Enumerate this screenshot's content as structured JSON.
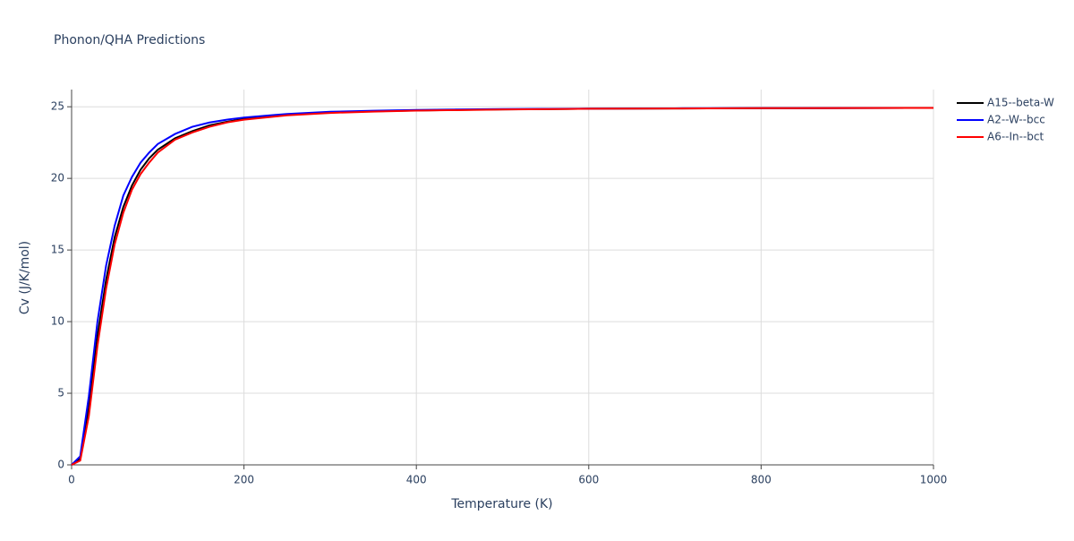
{
  "chart_data": {
    "type": "line",
    "title": "Phonon/QHA Predictions",
    "x_label": "Temperature (K)",
    "y_label": "Cv (J/K/mol)",
    "x": [
      0,
      10,
      20,
      30,
      40,
      50,
      60,
      70,
      80,
      90,
      100,
      120,
      140,
      160,
      180,
      200,
      250,
      300,
      350,
      400,
      500,
      600,
      700,
      800,
      900,
      1000
    ],
    "series": [
      {
        "name": "A15--beta-W",
        "color": "#000000",
        "values": [
          0,
          0.45,
          4.0,
          9.0,
          12.9,
          15.9,
          18.0,
          19.5,
          20.6,
          21.4,
          22.0,
          22.8,
          23.3,
          23.7,
          23.95,
          24.15,
          24.45,
          24.6,
          24.68,
          24.74,
          24.82,
          24.86,
          24.88,
          24.9,
          24.91,
          24.92
        ]
      },
      {
        "name": "A2--W--bcc",
        "color": "#0000ff",
        "values": [
          0,
          0.6,
          4.8,
          10.0,
          13.9,
          16.7,
          18.8,
          20.1,
          21.1,
          21.8,
          22.4,
          23.1,
          23.6,
          23.9,
          24.1,
          24.25,
          24.5,
          24.65,
          24.72,
          24.78,
          24.84,
          24.87,
          24.89,
          24.9,
          24.91,
          24.92
        ]
      },
      {
        "name": "A6--In--bct",
        "color": "#ff0000",
        "values": [
          0,
          0.3,
          3.4,
          8.3,
          12.3,
          15.4,
          17.6,
          19.2,
          20.3,
          21.1,
          21.8,
          22.7,
          23.2,
          23.6,
          23.9,
          24.1,
          24.4,
          24.57,
          24.66,
          24.73,
          24.81,
          24.86,
          24.88,
          24.9,
          24.91,
          24.92
        ]
      }
    ],
    "xlim": [
      0,
      1000
    ],
    "xticks": [
      0,
      200,
      400,
      600,
      800,
      1000
    ],
    "ylim": [
      0,
      26.2
    ],
    "yticks": [
      0,
      5,
      10,
      15,
      20,
      25
    ],
    "grid": true,
    "legend": "right"
  }
}
